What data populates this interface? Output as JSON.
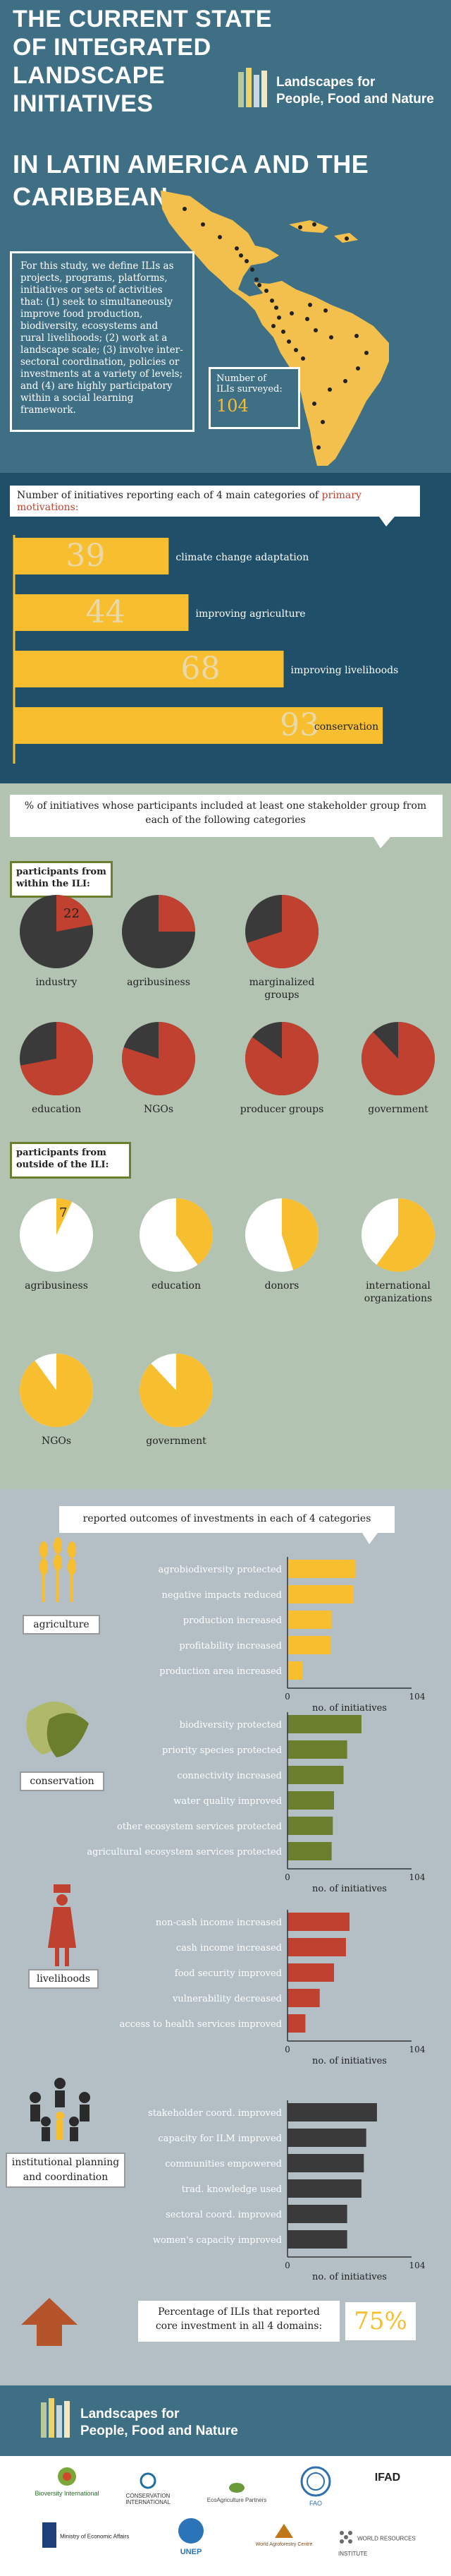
{
  "header": {
    "title_lines": [
      "THE CURRENT STATE",
      "OF INTEGRATED",
      "LANDSCAPE",
      "INITIATIVES",
      "IN LATIN AMERICA AND THE",
      "CARIBBEAN"
    ],
    "logo_line1": "Landscapes for",
    "logo_line2": "People, Food and Nature",
    "definition": "For this study, we define ILIs as projects, programs, platforms, initiatives or sets of activities that: (1) seek to simultaneously improve food production, biodiversity, ecosystems and rural livelihoods; (2) work at a landscape scale; (3) involve inter-sectoral coordination, policies or investments at a variety of levels; and (4) are highly participatory within a social learning framework.",
    "surveyed_label1": "Number of",
    "surveyed_label2": "ILIs surveyed:",
    "surveyed_value": "104"
  },
  "motivations": {
    "heading_pre": "Number of initiatives reporting each of 4 main categories of ",
    "heading_em": "primary motivations:",
    "chart_data": {
      "type": "bar",
      "categories": [
        "climate change adaptation",
        "improving agriculture",
        "improving livelihoods",
        "conservation"
      ],
      "values": [
        39,
        44,
        68,
        93
      ],
      "max": 104
    }
  },
  "participants": {
    "heading": "% of initiatives whose participants  included at least one stakeholder group from each of the following categories",
    "within_label": "participants from within the ILI:",
    "outside_label": "participants from outside of the ILI:",
    "within": {
      "type": "pie",
      "categories": [
        "industry",
        "agribusiness",
        "marginalized groups",
        "education",
        "NGOs",
        "producer groups",
        "government"
      ],
      "values": [
        22,
        25,
        70,
        72,
        80,
        85,
        88
      ],
      "labeled_value": "22"
    },
    "outside": {
      "type": "pie",
      "categories": [
        "agribusiness",
        "education",
        "donors",
        "international organizations",
        "NGOs",
        "government"
      ],
      "values": [
        7,
        40,
        45,
        60,
        90,
        88
      ],
      "labeled_value": "7"
    },
    "colors": {
      "within_share": "#c0412f",
      "within_rest": "#3a3a3a",
      "outside_share": "#f7be2f",
      "outside_rest": "#ffffff"
    }
  },
  "outcomes": {
    "heading": "reported outcomes of investments in each of 4 categories",
    "axis_label": "no. of initiatives",
    "axis_min": "0",
    "axis_max": "104",
    "chart_data": [
      {
        "type": "bar",
        "title": "agriculture",
        "color": "#f7be2f",
        "categories": [
          "agrobiodiversity protected",
          "negative impacts reduced",
          "production increased",
          "profitability increased",
          "production area increased"
        ],
        "values": [
          57,
          55,
          37,
          36,
          13
        ],
        "xlim": [
          0,
          104
        ]
      },
      {
        "type": "bar",
        "title": "conservation",
        "color": "#6b7e2e",
        "categories": [
          "biodiversity protected",
          "priority species protected",
          "connectivity increased",
          "water quality improved",
          "other ecosystem services protected",
          "agricultural ecosystem services protected"
        ],
        "values": [
          62,
          50,
          47,
          39,
          38,
          37
        ],
        "xlim": [
          0,
          104
        ]
      },
      {
        "type": "bar",
        "title": "livelihoods",
        "color": "#c0412f",
        "categories": [
          "non-cash income increased",
          "cash income increased",
          "food security improved",
          "vulnerability decreased",
          "access to health services improved"
        ],
        "values": [
          52,
          49,
          39,
          27,
          15
        ],
        "xlim": [
          0,
          104
        ]
      },
      {
        "type": "bar",
        "title": "institutional planning and coordination",
        "color": "#3a3a3a",
        "categories": [
          "stakeholder coord. improved",
          "capacity for ILM improved",
          "communities empowered",
          "trad. knowledge used",
          "sectoral coord. improved",
          "women's capacity improved"
        ],
        "values": [
          75,
          66,
          64,
          62,
          50,
          50
        ],
        "xlim": [
          0,
          104
        ]
      }
    ],
    "core_label1": "Percentage of ILIs that reported",
    "core_label2": "core investment in all 4 domains:",
    "core_value": "75%"
  },
  "footer": {
    "logo_line1": "Landscapes for",
    "logo_line2": "People, Food and Nature",
    "partners": [
      "Bioversity International",
      "CONSERVATION INTERNATIONAL",
      "EcoAgriculture Partners",
      "FAO",
      "IFAD",
      "Ministry of Economic Affairs",
      "UNEP",
      "World Agroforestry Centre",
      "WORLD RESOURCES INSTITUTE"
    ]
  },
  "colors": {
    "teal": "#3f6f85",
    "yellow": "#f7be2f",
    "olive_band": "#b3c3b2",
    "grey_bg": "#b3bfc4",
    "blue_bg": "#7ea6b8"
  }
}
